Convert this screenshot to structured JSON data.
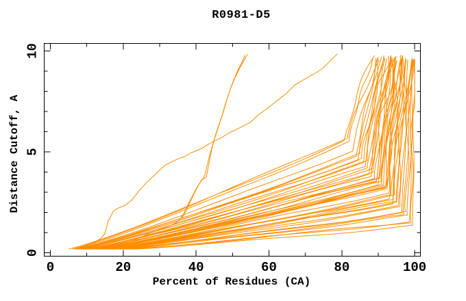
{
  "page": {
    "background": "#ffffff"
  },
  "chart_data": {
    "type": "line",
    "title": "R0981-D5",
    "xlabel": "Percent of Residues (CA)",
    "ylabel": "Distance Cutoff, A",
    "xlim": [
      0,
      100
    ],
    "ylim": [
      0,
      10
    ],
    "grid": false,
    "legend": null,
    "x_axis": {
      "major_ticks": [
        0,
        20,
        40,
        60,
        80,
        100
      ],
      "minor_ticks": [
        10,
        30,
        50,
        70,
        90
      ]
    },
    "y_axis": {
      "major_ticks": [
        0,
        5,
        10
      ],
      "minor_ticks": [
        1,
        2,
        3,
        4,
        6,
        7,
        8,
        9
      ]
    },
    "colors": {
      "line": "#ff8c00",
      "axis": "#000000",
      "text": "#000000"
    },
    "series": {
      "outlier_curves": [
        {
          "name": "early-riser-1",
          "points": [
            [
              7.5,
              0.2
            ],
            [
              9.5,
              0.32
            ],
            [
              11.5,
              0.48
            ],
            [
              13.5,
              0.66
            ],
            [
              14.8,
              0.9
            ],
            [
              15.4,
              1.25
            ],
            [
              15.8,
              1.55
            ],
            [
              16.6,
              1.8
            ],
            [
              17.2,
              2.05
            ],
            [
              18.5,
              2.2
            ],
            [
              20.5,
              2.35
            ],
            [
              21.6,
              2.5
            ],
            [
              22.4,
              2.62
            ],
            [
              24.5,
              3.1
            ],
            [
              26.5,
              3.5
            ],
            [
              28,
              3.75
            ],
            [
              30,
              4.1
            ],
            [
              31.6,
              4.35
            ],
            [
              33.2,
              4.5
            ],
            [
              35,
              4.65
            ],
            [
              36.6,
              4.75
            ],
            [
              38.6,
              4.95
            ],
            [
              41.3,
              5.15
            ],
            [
              43.6,
              5.4
            ],
            [
              46.9,
              5.7
            ],
            [
              49.2,
              5.95
            ],
            [
              51.5,
              6.15
            ],
            [
              54.8,
              6.45
            ],
            [
              57.2,
              6.85
            ],
            [
              59.5,
              7.15
            ],
            [
              62.7,
              7.6
            ],
            [
              64.8,
              7.9
            ],
            [
              67,
              8.3
            ],
            [
              69.3,
              8.55
            ],
            [
              71.2,
              8.75
            ],
            [
              73.2,
              8.95
            ],
            [
              74.8,
              9.15
            ],
            [
              76.2,
              9.4
            ],
            [
              77.6,
              9.65
            ],
            [
              78.7,
              9.85
            ]
          ]
        },
        {
          "name": "early-riser-2a",
          "points": [
            [
              20,
              0.45
            ],
            [
              24,
              0.7
            ],
            [
              27,
              0.95
            ],
            [
              30,
              1.15
            ],
            [
              33,
              1.35
            ],
            [
              35,
              1.55
            ],
            [
              36.5,
              1.9
            ],
            [
              37.5,
              2.3
            ],
            [
              38.8,
              2.75
            ],
            [
              40.1,
              3.2
            ],
            [
              41.5,
              3.6
            ],
            [
              42.8,
              3.75
            ],
            [
              43.1,
              4.0
            ],
            [
              43.5,
              4.4
            ],
            [
              44.0,
              4.85
            ],
            [
              44.5,
              5.3
            ],
            [
              45.2,
              5.75
            ],
            [
              46.0,
              6.2
            ],
            [
              46.8,
              6.6
            ],
            [
              47.5,
              7.0
            ],
            [
              48.3,
              7.5
            ],
            [
              49.2,
              8.0
            ],
            [
              50.2,
              8.5
            ],
            [
              51.2,
              8.95
            ],
            [
              52.2,
              9.3
            ],
            [
              53.0,
              9.6
            ],
            [
              53.4,
              9.8
            ]
          ]
        },
        {
          "name": "early-riser-2b",
          "points": [
            [
              36,
              1.7
            ],
            [
              37.3,
              2.1
            ],
            [
              38.3,
              2.5
            ],
            [
              39.5,
              2.95
            ],
            [
              40.8,
              3.4
            ],
            [
              42.0,
              3.7
            ],
            [
              42.5,
              3.9
            ],
            [
              43.0,
              4.3
            ],
            [
              43.6,
              4.75
            ],
            [
              44.3,
              5.2
            ],
            [
              45.0,
              5.6
            ],
            [
              45.8,
              6.05
            ],
            [
              46.5,
              6.45
            ],
            [
              47.3,
              6.9
            ],
            [
              48.0,
              7.35
            ],
            [
              48.9,
              7.85
            ],
            [
              49.9,
              8.35
            ],
            [
              51.0,
              8.8
            ],
            [
              52.1,
              9.2
            ],
            [
              53.2,
              9.55
            ],
            [
              54.2,
              9.85
            ]
          ]
        }
      ],
      "bundle_curves": {
        "params_format": [
          "x_start",
          "x_turn",
          "x_end",
          "seed"
        ],
        "start_y": 0.18,
        "top_y_range": [
          9.5,
          9.8
        ],
        "elbow_y_base": 1.35,
        "elbow_y_per_unit_before_100": 0.225,
        "curves": [
          [
            5,
            80.5,
            89,
            1
          ],
          [
            6,
            81.5,
            90.5,
            2
          ],
          [
            6.5,
            82,
            88.5,
            3
          ],
          [
            7,
            83,
            91,
            4
          ],
          [
            7,
            84,
            90,
            5
          ],
          [
            7.5,
            84.5,
            92,
            6
          ],
          [
            8,
            85,
            89.5,
            7
          ],
          [
            8,
            85.5,
            93,
            8
          ],
          [
            8.5,
            86,
            91.5,
            9
          ],
          [
            9,
            86.5,
            92.5,
            10
          ],
          [
            9,
            87,
            90.5,
            11
          ],
          [
            9.5,
            87.5,
            94,
            12
          ],
          [
            10,
            88,
            92,
            13
          ],
          [
            10,
            88,
            95,
            14
          ],
          [
            10.5,
            88.5,
            93.5,
            15
          ],
          [
            11,
            89,
            94.5,
            16
          ],
          [
            11,
            89.5,
            92.5,
            17
          ],
          [
            11.5,
            90,
            96,
            18
          ],
          [
            12,
            90,
            94,
            19
          ],
          [
            12,
            90.5,
            95.5,
            20
          ],
          [
            12.5,
            91,
            93.5,
            21
          ],
          [
            13,
            91,
            96.5,
            22
          ],
          [
            13,
            91.5,
            95,
            23
          ],
          [
            13.5,
            92,
            97,
            24
          ],
          [
            14,
            92,
            94.5,
            25
          ],
          [
            14,
            92.5,
            96,
            26
          ],
          [
            14.5,
            93,
            97.5,
            27
          ],
          [
            15,
            93,
            95.5,
            28
          ],
          [
            15,
            93.5,
            98,
            29
          ],
          [
            15.5,
            94,
            96.5,
            30
          ],
          [
            16,
            94,
            98.5,
            31
          ],
          [
            16,
            94.5,
            97,
            32
          ],
          [
            16.5,
            95,
            98,
            33
          ],
          [
            17,
            95,
            99,
            34
          ],
          [
            17,
            95.5,
            97.5,
            35
          ],
          [
            17.5,
            96,
            99.5,
            36
          ],
          [
            18,
            96.5,
            98.5,
            37
          ],
          [
            18,
            97,
            99.5,
            38
          ],
          [
            19,
            97.5,
            99,
            39
          ],
          [
            20,
            98,
            100,
            40
          ],
          [
            21,
            98.5,
            99.8,
            41
          ],
          [
            22,
            99,
            100,
            42
          ],
          [
            23,
            99.5,
            100,
            43
          ],
          [
            8.5,
            87,
            93.8,
            44
          ],
          [
            10.5,
            89.5,
            95.2,
            45
          ],
          [
            12.5,
            92.5,
            96.8,
            46
          ]
        ]
      }
    }
  }
}
